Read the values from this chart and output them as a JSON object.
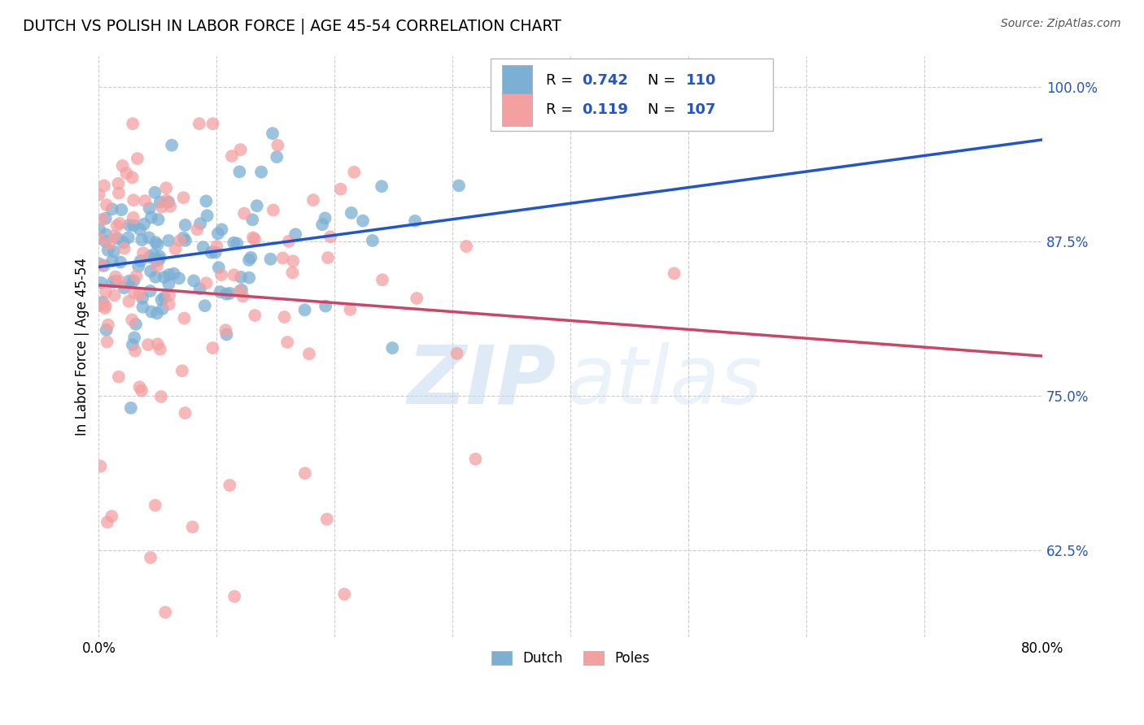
{
  "title": "DUTCH VS POLISH IN LABOR FORCE | AGE 45-54 CORRELATION CHART",
  "source": "Source: ZipAtlas.com",
  "ylabel": "In Labor Force | Age 45-54",
  "x_min": 0.0,
  "x_max": 0.8,
  "y_min": 0.555,
  "y_max": 1.025,
  "x_ticks": [
    0.0,
    0.1,
    0.2,
    0.3,
    0.4,
    0.5,
    0.6,
    0.7,
    0.8
  ],
  "y_ticks": [
    0.625,
    0.75,
    0.875,
    1.0
  ],
  "y_ticklabels": [
    "62.5%",
    "75.0%",
    "87.5%",
    "100.0%"
  ],
  "dutch_R": 0.742,
  "dutch_N": 110,
  "polish_R": 0.119,
  "polish_N": 107,
  "dutch_color": "#7BAFD4",
  "polish_color": "#F4A0A0",
  "dutch_line_color": "#2255CC",
  "polish_line_color": "#CC4466",
  "background_color": "#FFFFFF",
  "grid_color": "#CCCCCC"
}
